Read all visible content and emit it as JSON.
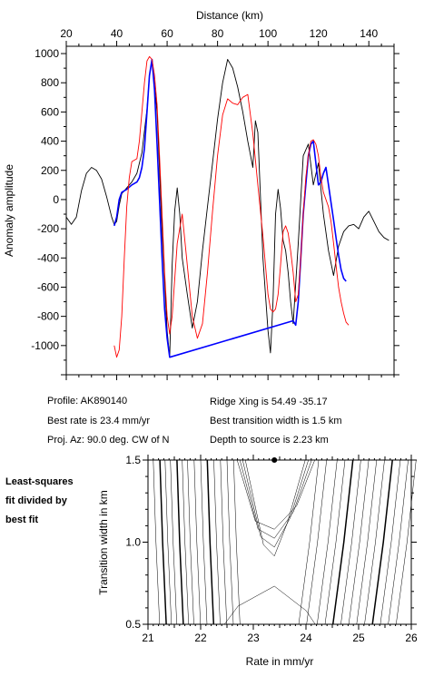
{
  "chart_data": [
    {
      "type": "line",
      "xlabel": "Distance (km)",
      "ylabel": "Anomaly amplitude",
      "xlim": [
        20,
        150
      ],
      "ylim": [
        -1200,
        1050
      ],
      "xticks": [
        20,
        40,
        60,
        80,
        100,
        120,
        140
      ],
      "yticks": [
        -1000,
        -800,
        -600,
        -400,
        -200,
        0,
        200,
        400,
        600,
        800,
        1000
      ],
      "grid": false,
      "series": [
        {
          "color": "#000000",
          "x": [
            20,
            22,
            24,
            26,
            28,
            30,
            32,
            34,
            36,
            38,
            39,
            40,
            41,
            42,
            44,
            46,
            48,
            50,
            52,
            53,
            54,
            56,
            58,
            60,
            61,
            62,
            63,
            64,
            65,
            66,
            68,
            70,
            72,
            74,
            76,
            78,
            80,
            82,
            84,
            85,
            86,
            88,
            90,
            92,
            94,
            95,
            96,
            98,
            100,
            101,
            102,
            103,
            104,
            105,
            106,
            107,
            108,
            109,
            110,
            112,
            114,
            116,
            118,
            120,
            122,
            124,
            126,
            128,
            130,
            132,
            134,
            136,
            138,
            140,
            142,
            144,
            146,
            148
          ],
          "y": [
            -120,
            -170,
            -120,
            60,
            180,
            220,
            200,
            140,
            20,
            -120,
            -170,
            -150,
            -40,
            40,
            80,
            120,
            180,
            320,
            620,
            850,
            960,
            600,
            -200,
            -900,
            -1080,
            -450,
            -80,
            80,
            -100,
            -400,
            -650,
            -880,
            -700,
            -350,
            -50,
            250,
            550,
            800,
            960,
            930,
            900,
            770,
            600,
            400,
            220,
            540,
            460,
            -400,
            -900,
            -1050,
            -700,
            -100,
            70,
            -60,
            -280,
            -350,
            -500,
            -700,
            -850,
            -300,
            300,
            380,
            100,
            250,
            -100,
            -350,
            -520,
            -320,
            -220,
            -180,
            -170,
            -200,
            -120,
            -80,
            -150,
            -220,
            -260,
            -280
          ]
        },
        {
          "color": "#0000ff",
          "x": [
            39,
            40,
            41,
            42,
            44,
            46,
            47,
            48,
            49,
            50,
            51,
            52,
            53,
            54,
            55,
            56,
            57,
            58,
            59,
            60,
            61,
            110,
            111,
            112,
            113,
            114,
            115,
            116,
            117,
            118,
            119,
            120,
            121,
            122,
            123,
            124,
            125,
            126,
            127,
            128,
            129,
            130,
            131
          ],
          "y": [
            -180,
            -120,
            0,
            50,
            70,
            100,
            110,
            120,
            150,
            220,
            350,
            600,
            850,
            960,
            750,
            380,
            0,
            -400,
            -750,
            -950,
            -1080,
            -830,
            -860,
            -700,
            -400,
            -100,
            100,
            300,
            380,
            400,
            250,
            100,
            120,
            180,
            220,
            100,
            -20,
            -140,
            -260,
            -380,
            -480,
            -540,
            -560
          ]
        },
        {
          "color": "#ff0000",
          "x": [
            39,
            40,
            41,
            42,
            43,
            44,
            45,
            46,
            47,
            48,
            49,
            50,
            51,
            52,
            53,
            54,
            55,
            56,
            57,
            58,
            59,
            60,
            61,
            62,
            64,
            66,
            68,
            70,
            72,
            74,
            76,
            78,
            80,
            82,
            84,
            86,
            88,
            90,
            92,
            94,
            96,
            98,
            100,
            101,
            102,
            103,
            104,
            105,
            106,
            107,
            108,
            109,
            110,
            111,
            112,
            113,
            114,
            115,
            116,
            117,
            118,
            119,
            120,
            121,
            122,
            123,
            124,
            125,
            126,
            127,
            128,
            129,
            130,
            131,
            132
          ],
          "y": [
            -1000,
            -1080,
            -1030,
            -800,
            -400,
            -50,
            150,
            260,
            270,
            280,
            400,
            600,
            800,
            950,
            980,
            960,
            850,
            650,
            300,
            -100,
            -500,
            -800,
            -920,
            -800,
            -300,
            -100,
            -450,
            -800,
            -950,
            -850,
            -500,
            -80,
            300,
            580,
            690,
            660,
            650,
            700,
            720,
            450,
            100,
            -250,
            -650,
            -750,
            -770,
            -750,
            -650,
            -450,
            -220,
            -180,
            -230,
            -350,
            -500,
            -700,
            -650,
            -400,
            -100,
            150,
            300,
            400,
            410,
            380,
            300,
            150,
            50,
            0,
            -50,
            -150,
            -300,
            -450,
            -600,
            -700,
            -780,
            -840,
            -860
          ]
        }
      ]
    },
    {
      "type": "contour",
      "xlabel": "Rate in mm/yr",
      "ylabel": "Transition width in km",
      "xlim": [
        21,
        26
      ],
      "ylim": [
        0.5,
        1.5
      ],
      "xticks": [
        21,
        22,
        23,
        24,
        25,
        26
      ],
      "yticks": [
        0.5,
        1.0,
        1.5
      ],
      "best_fit_marker": {
        "x": 23.4,
        "y": 1.5
      },
      "bold_contour_x_positions": [
        21.15,
        21.45,
        22.15,
        25.05,
        25.55
      ]
    }
  ],
  "info": {
    "profile": "Profile: AK890140",
    "best_rate": "Best rate is 23.4 mm/yr",
    "proj_az": "Proj. Az: 90.0 deg. CW of N",
    "ridge_xing": "Ridge Xing is 54.49 -35.17",
    "best_width": "Best transition width is 1.5 km",
    "depth": "Depth to source is   2.23 km"
  },
  "note": {
    "line1": "Least-squares",
    "line2": "fit divided by",
    "line3": "best fit"
  }
}
